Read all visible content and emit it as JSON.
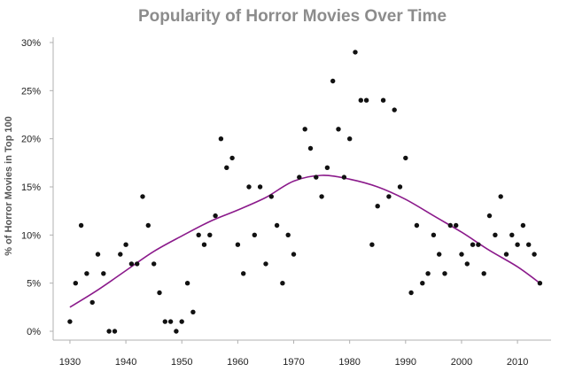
{
  "colors": {
    "background": "#ffffff",
    "point": "#111111",
    "trend": "#8b1a8b",
    "axis": "#b0b0b0",
    "title": "#8c8c8c"
  },
  "chart_data": {
    "type": "scatter",
    "title": "Popularity of Horror Movies Over Time",
    "xlabel": "",
    "ylabel": "% of Horror Movies in Top 100",
    "xlim": [
      1927,
      2016
    ],
    "ylim": [
      0,
      30
    ],
    "x_ticks": [
      1930,
      1940,
      1950,
      1960,
      1970,
      1980,
      1990,
      2000,
      2010
    ],
    "x_tick_labels": [
      "1930",
      "1940",
      "1950",
      "1960",
      "1970",
      "1980",
      "1990",
      "2000",
      "2010"
    ],
    "y_ticks": [
      0,
      5,
      10,
      15,
      20,
      25,
      30
    ],
    "y_tick_labels": [
      "0%",
      "5%",
      "10%",
      "15%",
      "20%",
      "25%",
      "30%"
    ],
    "grid": false,
    "series": [
      {
        "type": "scatter",
        "points": [
          [
            1930,
            1
          ],
          [
            1931,
            5
          ],
          [
            1932,
            11
          ],
          [
            1933,
            6
          ],
          [
            1934,
            3
          ],
          [
            1935,
            8
          ],
          [
            1936,
            6
          ],
          [
            1937,
            0
          ],
          [
            1938,
            0
          ],
          [
            1939,
            8
          ],
          [
            1940,
            9
          ],
          [
            1941,
            7
          ],
          [
            1942,
            7
          ],
          [
            1943,
            14
          ],
          [
            1944,
            11
          ],
          [
            1945,
            7
          ],
          [
            1946,
            4
          ],
          [
            1947,
            1
          ],
          [
            1948,
            1
          ],
          [
            1949,
            0
          ],
          [
            1950,
            1
          ],
          [
            1951,
            5
          ],
          [
            1952,
            2
          ],
          [
            1953,
            10
          ],
          [
            1954,
            9
          ],
          [
            1955,
            10
          ],
          [
            1956,
            12
          ],
          [
            1957,
            20
          ],
          [
            1958,
            17
          ],
          [
            1959,
            18
          ],
          [
            1960,
            9
          ],
          [
            1961,
            6
          ],
          [
            1962,
            15
          ],
          [
            1963,
            10
          ],
          [
            1964,
            15
          ],
          [
            1965,
            7
          ],
          [
            1966,
            14
          ],
          [
            1967,
            11
          ],
          [
            1968,
            5
          ],
          [
            1969,
            10
          ],
          [
            1970,
            8
          ],
          [
            1971,
            16
          ],
          [
            1972,
            21
          ],
          [
            1973,
            19
          ],
          [
            1974,
            16
          ],
          [
            1975,
            14
          ],
          [
            1976,
            17
          ],
          [
            1977,
            26
          ],
          [
            1978,
            21
          ],
          [
            1979,
            16
          ],
          [
            1980,
            20
          ],
          [
            1981,
            29
          ],
          [
            1982,
            24
          ],
          [
            1983,
            24
          ],
          [
            1984,
            9
          ],
          [
            1985,
            13
          ],
          [
            1986,
            24
          ],
          [
            1987,
            14
          ],
          [
            1988,
            23
          ],
          [
            1989,
            15
          ],
          [
            1990,
            18
          ],
          [
            1991,
            4
          ],
          [
            1992,
            11
          ],
          [
            1993,
            5
          ],
          [
            1994,
            6
          ],
          [
            1995,
            10
          ],
          [
            1996,
            8
          ],
          [
            1997,
            6
          ],
          [
            1998,
            11
          ],
          [
            1999,
            11
          ],
          [
            2000,
            8
          ],
          [
            2001,
            7
          ],
          [
            2002,
            9
          ],
          [
            2003,
            9
          ],
          [
            2004,
            6
          ],
          [
            2005,
            12
          ],
          [
            2006,
            10
          ],
          [
            2007,
            14
          ],
          [
            2008,
            8
          ],
          [
            2009,
            10
          ],
          [
            2010,
            9
          ],
          [
            2011,
            11
          ],
          [
            2012,
            9
          ],
          [
            2013,
            8
          ],
          [
            2014,
            5
          ]
        ]
      },
      {
        "type": "line",
        "points": [
          [
            1930,
            2.5
          ],
          [
            1935,
            4.3
          ],
          [
            1940,
            6.3
          ],
          [
            1945,
            8.3
          ],
          [
            1950,
            9.9
          ],
          [
            1955,
            11.4
          ],
          [
            1960,
            12.6
          ],
          [
            1965,
            13.9
          ],
          [
            1970,
            15.6
          ],
          [
            1975,
            16.2
          ],
          [
            1980,
            15.8
          ],
          [
            1985,
            15.0
          ],
          [
            1990,
            13.7
          ],
          [
            1995,
            12.0
          ],
          [
            2000,
            10.3
          ],
          [
            2005,
            8.4
          ],
          [
            2010,
            6.7
          ],
          [
            2014,
            5.0
          ]
        ]
      }
    ]
  }
}
